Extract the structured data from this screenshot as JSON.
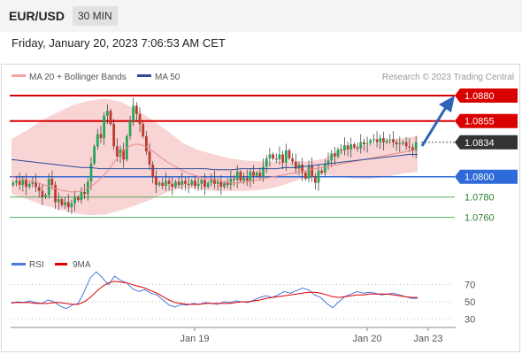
{
  "header": {
    "symbol": "EUR/USD",
    "timeframe": "30 MIN"
  },
  "datetime": "Friday, January 20, 2023 7:06:53 AM CET",
  "legend": {
    "bb": "MA 20 + Bollinger Bands",
    "ma50": "MA 50"
  },
  "watermark": "Research © 2023 Trading Central",
  "rsi_legend": {
    "rsi": "RSI",
    "ma": "9MA"
  },
  "colors": {
    "up": "#26a65b",
    "down": "#c0392b",
    "resistance": "#d90000",
    "support": "#2f6bd8",
    "target": "#5aa55a",
    "bands": "#f7c5c5",
    "ma20": "#e88a8a",
    "ma50": "#2c4c9a",
    "rsi": "#4a77e0",
    "rsi_ma": "#e00000",
    "arrow": "#2f63b8"
  },
  "chart_data": [
    {
      "type": "candlestick",
      "x_ticks": [
        "Jan 19",
        "Jan 20",
        "Jan 23"
      ],
      "ylim": [
        1.073,
        1.0887
      ],
      "grid": false,
      "price_levels": [
        {
          "label": "1.0880",
          "value": 1.088,
          "kind": "resistance"
        },
        {
          "label": "1.0855",
          "value": 1.0855,
          "kind": "resistance"
        },
        {
          "label": "1.0834",
          "value": 1.0834,
          "kind": "last"
        },
        {
          "label": "1.0800",
          "value": 1.08,
          "kind": "support"
        },
        {
          "label": "1.0780",
          "value": 1.078,
          "kind": "target"
        },
        {
          "label": "1.0760",
          "value": 1.076,
          "kind": "target"
        }
      ],
      "close": [
        1.0794,
        1.0796,
        1.0792,
        1.0797,
        1.079,
        1.0793,
        1.0795,
        1.079,
        1.0786,
        1.078,
        1.0782,
        1.0798,
        1.0792,
        1.0775,
        1.0778,
        1.0772,
        1.0775,
        1.077,
        1.0774,
        1.078,
        1.0777,
        1.0785,
        1.0783,
        1.0795,
        1.0813,
        1.083,
        1.0842,
        1.0838,
        1.086,
        1.0865,
        1.0852,
        1.083,
        1.082,
        1.0827,
        1.0817,
        1.084,
        1.0855,
        1.087,
        1.0862,
        1.0852,
        1.084,
        1.0825,
        1.0812,
        1.08,
        1.0792,
        1.0794,
        1.0791,
        1.0796,
        1.0793,
        1.079,
        1.0795,
        1.0792,
        1.0796,
        1.0793,
        1.0792,
        1.0796,
        1.0791,
        1.0793,
        1.0797,
        1.079,
        1.0794,
        1.0798,
        1.0793,
        1.0795,
        1.079,
        1.0794,
        1.0792,
        1.0798,
        1.0797,
        1.0805,
        1.0796,
        1.0799,
        1.0796,
        1.0805,
        1.0801,
        1.0804,
        1.08,
        1.081,
        1.0818,
        1.0822,
        1.0818,
        1.0817,
        1.0822,
        1.0814,
        1.0826,
        1.0818,
        1.0815,
        1.0808,
        1.0812,
        1.0804,
        1.0798,
        1.0811,
        1.08,
        1.0794,
        1.0806,
        1.0804,
        1.0812,
        1.0816,
        1.0823,
        1.082,
        1.0827,
        1.0826,
        1.0831,
        1.0827,
        1.0832,
        1.0829,
        1.0828,
        1.0834,
        1.0832,
        1.0833,
        1.0836,
        1.0837,
        1.0834,
        1.0838,
        1.0834,
        1.0836,
        1.0837,
        1.0834,
        1.0832,
        1.0833,
        1.0834,
        1.083,
        1.0829,
        1.0826,
        1.0834
      ],
      "ma20": [
        1.08,
        1.0799,
        1.0798,
        1.0797,
        1.0795,
        1.0794,
        1.0792,
        1.0791,
        1.0789,
        1.0787,
        1.0786,
        1.0785,
        1.0785,
        1.0786,
        1.0788,
        1.0791,
        1.0795,
        1.08,
        1.0806,
        1.0813,
        1.082,
        1.0826,
        1.083,
        1.0832,
        1.0832,
        1.083,
        1.0827,
        1.0823,
        1.0819,
        1.0815,
        1.0812,
        1.0809,
        1.0806,
        1.0804,
        1.0802,
        1.08,
        1.0799,
        1.0798,
        1.0797,
        1.0796,
        1.0795,
        1.0794,
        1.0794,
        1.0794,
        1.0795,
        1.0796,
        1.0797,
        1.0798,
        1.0799,
        1.08,
        1.0801,
        1.0802,
        1.0803,
        1.0804,
        1.0805,
        1.0806,
        1.0807,
        1.0808,
        1.0809,
        1.081,
        1.0811,
        1.0812,
        1.0813,
        1.0814,
        1.0815,
        1.0816,
        1.0817,
        1.0818,
        1.0819,
        1.082,
        1.0821,
        1.0822,
        1.0823,
        1.0824,
        1.0825,
        1.0826,
        1.0826
      ],
      "ma50": [
        1.0817,
        1.0816,
        1.0815,
        1.0814,
        1.0813,
        1.0812,
        1.0811,
        1.081,
        1.0809,
        1.0809,
        1.0808,
        1.0808,
        1.0808,
        1.0808,
        1.0808,
        1.0808,
        1.0808,
        1.0808,
        1.0808,
        1.0808,
        1.0808,
        1.0808,
        1.0808,
        1.0807,
        1.0807,
        1.0807,
        1.0808,
        1.0808,
        1.0808,
        1.0808,
        1.0808,
        1.0809,
        1.0809,
        1.081,
        1.0811,
        1.0812,
        1.0813,
        1.0814,
        1.0815,
        1.0816,
        1.0817,
        1.0818,
        1.0819,
        1.082,
        1.0821,
        1.0822,
        1.0822
      ],
      "bb_upper": [
        1.0837,
        1.0846,
        1.0856,
        1.0864,
        1.0871,
        1.0875,
        1.0877,
        1.0874,
        1.0866,
        1.0856,
        1.0845,
        1.0833,
        1.0826,
        1.0822,
        1.0818,
        1.0816,
        1.0815,
        1.0815,
        1.0815,
        1.0815,
        1.0818,
        1.0826,
        1.083,
        1.0832,
        1.0835,
        1.0838,
        1.084
      ],
      "bb_lower": [
        1.0783,
        1.0778,
        1.0772,
        1.0768,
        1.0764,
        1.0762,
        1.0763,
        1.0767,
        1.0772,
        1.0778,
        1.0785,
        1.0789,
        1.0788,
        1.0786,
        1.0786,
        1.0786,
        1.0787,
        1.079,
        1.0795,
        1.08,
        1.0802,
        1.08,
        1.0798,
        1.0798,
        1.08,
        1.0803,
        1.0805
      ]
    },
    {
      "type": "line",
      "yticks": [
        70,
        50,
        30
      ],
      "ylim": [
        22,
        80
      ],
      "rsi": [
        48,
        50,
        49,
        51,
        49,
        48,
        52,
        50,
        45,
        42,
        46,
        48,
        62,
        78,
        85,
        78,
        70,
        80,
        75,
        72,
        65,
        62,
        64,
        60,
        58,
        52,
        46,
        44,
        47,
        46,
        48,
        47,
        49,
        48,
        47,
        50,
        49,
        51,
        50,
        49,
        52,
        55,
        57,
        55,
        58,
        62,
        60,
        63,
        66,
        64,
        58,
        55,
        48,
        43,
        50,
        56,
        59,
        62,
        60,
        61,
        60,
        58,
        59,
        60,
        58,
        56,
        54,
        54
      ],
      "rsi_ma": [
        49,
        49,
        49,
        49,
        48,
        48,
        48,
        49,
        49,
        48,
        47,
        47,
        50,
        55,
        62,
        68,
        72,
        74,
        73,
        72,
        70,
        68,
        66,
        63,
        60,
        56,
        52,
        49,
        48,
        47,
        47,
        47,
        48,
        48,
        48,
        48,
        48,
        49,
        50,
        50,
        51,
        52,
        54,
        55,
        56,
        57,
        58,
        59,
        60,
        61,
        61,
        60,
        58,
        56,
        55,
        56,
        57,
        58,
        58,
        59,
        59,
        59,
        59,
        58,
        57,
        56,
        55,
        55
      ]
    }
  ]
}
